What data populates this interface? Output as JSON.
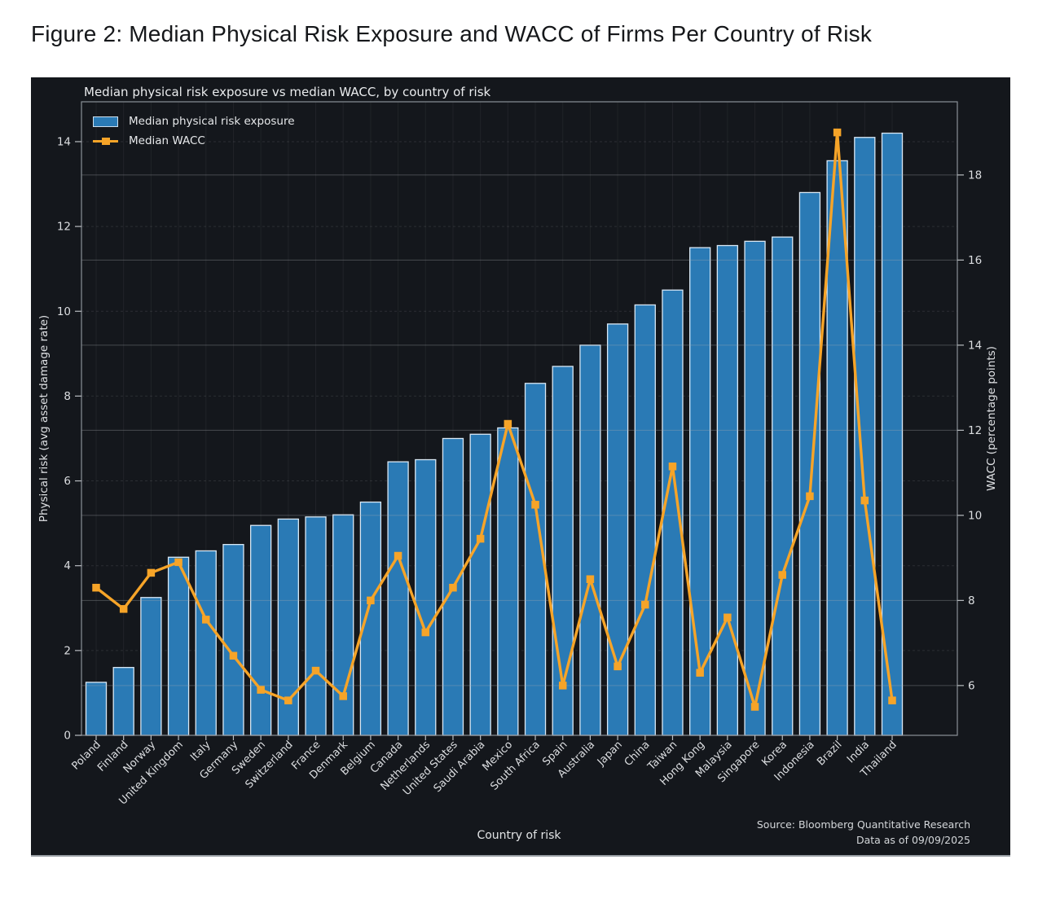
{
  "figure_title": "Figure 2: Median Physical Risk Exposure and WACC of Firms Per Country of Risk",
  "chart": {
    "title": "Median physical risk exposure vs median WACC, by country of risk",
    "xlabel": "Country of risk",
    "ylabel_left": "Physical risk (avg asset damage rate)",
    "ylabel_right": "WACC (percentage points)",
    "legend": [
      "Median physical risk exposure",
      "Median WACC"
    ],
    "source_line1": "Source: Bloomberg Quantitative Research",
    "source_line2": "Data as of 09/09/2025"
  },
  "colors": {
    "panel_bg": "#14171c",
    "bar_fill": "#2a7ab5",
    "bar_edge": "#d9e8f5",
    "line_color": "#f6a428",
    "text_light": "#e6e8ea",
    "tick_text": "#dcdee1",
    "spine": "#8a9097"
  },
  "chart_data": {
    "type": "bar+line",
    "title": "Median physical risk exposure vs median WACC, by country of risk",
    "xlabel": "Country of risk",
    "categories": [
      "Poland",
      "Finland",
      "Norway",
      "United Kingdom",
      "Italy",
      "Germany",
      "Sweden",
      "Switzerland",
      "France",
      "Denmark",
      "Belgium",
      "Canada",
      "Netherlands",
      "United States",
      "Saudi Arabia",
      "Mexico",
      "South Africa",
      "Spain",
      "Australia",
      "Japan",
      "China",
      "Taiwan",
      "Hong Kong",
      "Malaysia",
      "Singapore",
      "Korea",
      "Indonesia",
      "Brazil",
      "India",
      "Thailand"
    ],
    "series": [
      {
        "name": "Median physical risk exposure",
        "type": "bar",
        "axis": "left",
        "values": [
          1.25,
          1.6,
          3.25,
          4.2,
          4.35,
          4.5,
          4.95,
          5.1,
          5.15,
          5.2,
          5.5,
          6.45,
          6.5,
          7.0,
          7.1,
          7.25,
          8.3,
          8.7,
          9.2,
          9.7,
          10.15,
          10.5,
          11.5,
          11.55,
          11.65,
          11.75,
          12.8,
          13.55,
          14.1,
          14.2
        ]
      },
      {
        "name": "Median WACC",
        "type": "line",
        "axis": "right",
        "values": [
          8.3,
          7.8,
          8.65,
          8.9,
          7.55,
          6.7,
          5.9,
          5.65,
          6.35,
          5.75,
          8.0,
          9.05,
          7.25,
          8.3,
          9.45,
          12.15,
          10.25,
          6.0,
          8.5,
          6.45,
          7.9,
          11.15,
          6.3,
          7.6,
          5.5,
          8.6,
          10.45,
          19.0,
          10.35,
          5.65
        ]
      }
    ],
    "left_axis": {
      "label": "Physical risk (avg asset damage rate)",
      "ticks": [
        0,
        2,
        4,
        6,
        8,
        10,
        12,
        14
      ],
      "range": [
        0,
        14.94
      ]
    },
    "right_axis": {
      "label": "WACC (percentage points)",
      "ticks": [
        6,
        8,
        10,
        12,
        14,
        16,
        18
      ],
      "range": [
        4.83,
        19.72
      ]
    },
    "grid": true,
    "legend_position": "upper left"
  }
}
